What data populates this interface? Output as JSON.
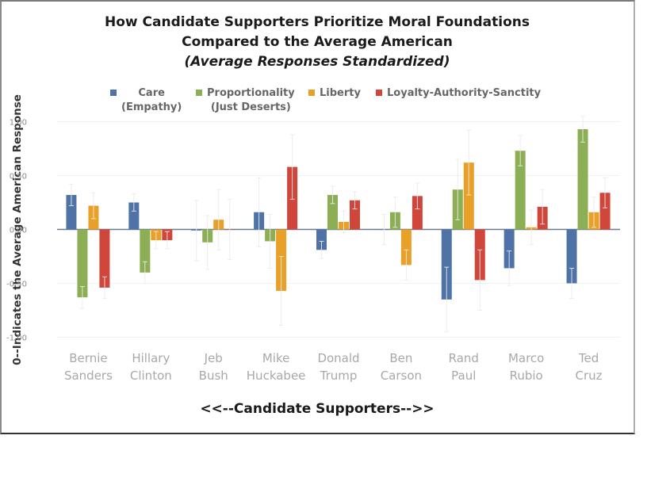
{
  "chart_data": {
    "type": "bar",
    "title": "How Candidate Supporters Prioritize Moral Foundations",
    "title_line2": "Compared to the Average American",
    "subtitle": "(Average Responses Standardized)",
    "xlabel": "<<--Candidate Supporters-->>",
    "ylabel": "0--Indicates the Average American Response",
    "ylim": [
      -1.0,
      1.0
    ],
    "yticks": [
      1.0,
      0.5,
      0.0,
      -0.5,
      -1.0
    ],
    "ytick_labels": [
      "1.00",
      "0.50",
      "0.00",
      "-0.50",
      "-1.00"
    ],
    "grid": true,
    "legend_position": "top",
    "categories": [
      {
        "first": "Bernie",
        "last": "Sanders"
      },
      {
        "first": "Hillary",
        "last": "Clinton"
      },
      {
        "first": "Jeb",
        "last": "Bush"
      },
      {
        "first": "Mike",
        "last": "Huckabee"
      },
      {
        "first": "Donald",
        "last": "Trump"
      },
      {
        "first": "Ben",
        "last": "Carson"
      },
      {
        "first": "Rand",
        "last": "Paul"
      },
      {
        "first": "Marco",
        "last": "Rubio"
      },
      {
        "first": "Ted",
        "last": "Cruz"
      }
    ],
    "series": [
      {
        "name": "Care",
        "name_line2": "(Empathy)",
        "color": "#4f73a6",
        "values": [
          0.32,
          0.25,
          -0.01,
          0.16,
          -0.19,
          0.0,
          -0.65,
          -0.36,
          -0.5
        ]
      },
      {
        "name": "Proportionality",
        "name_line2": "(Just Deserts)",
        "color": "#8caf55",
        "values": [
          -0.63,
          -0.4,
          -0.12,
          -0.11,
          0.32,
          0.16,
          0.37,
          0.73,
          0.93
        ]
      },
      {
        "name": "Liberty",
        "name_line2": "",
        "color": "#e9a027",
        "values": [
          0.22,
          -0.1,
          0.09,
          -0.57,
          0.07,
          -0.33,
          0.62,
          0.02,
          0.16
        ]
      },
      {
        "name": "Loyalty-Authority-Sanctity",
        "name_line2": "",
        "color": "#d0463b",
        "values": [
          -0.54,
          -0.1,
          0.0,
          0.58,
          0.27,
          0.31,
          -0.47,
          0.21,
          0.34
        ]
      }
    ],
    "error_margin": [
      [
        0.1,
        0.1,
        0.12,
        0.1
      ],
      [
        0.08,
        0.1,
        0.08,
        0.08
      ],
      [
        0.28,
        0.25,
        0.28,
        0.28
      ],
      [
        0.32,
        0.25,
        0.32,
        0.3
      ],
      [
        0.08,
        0.08,
        0.1,
        0.08
      ],
      [
        0.14,
        0.14,
        0.14,
        0.12
      ],
      [
        0.3,
        0.28,
        0.3,
        0.28
      ],
      [
        0.16,
        0.14,
        0.16,
        0.16
      ],
      [
        0.14,
        0.12,
        0.14,
        0.14
      ]
    ]
  }
}
